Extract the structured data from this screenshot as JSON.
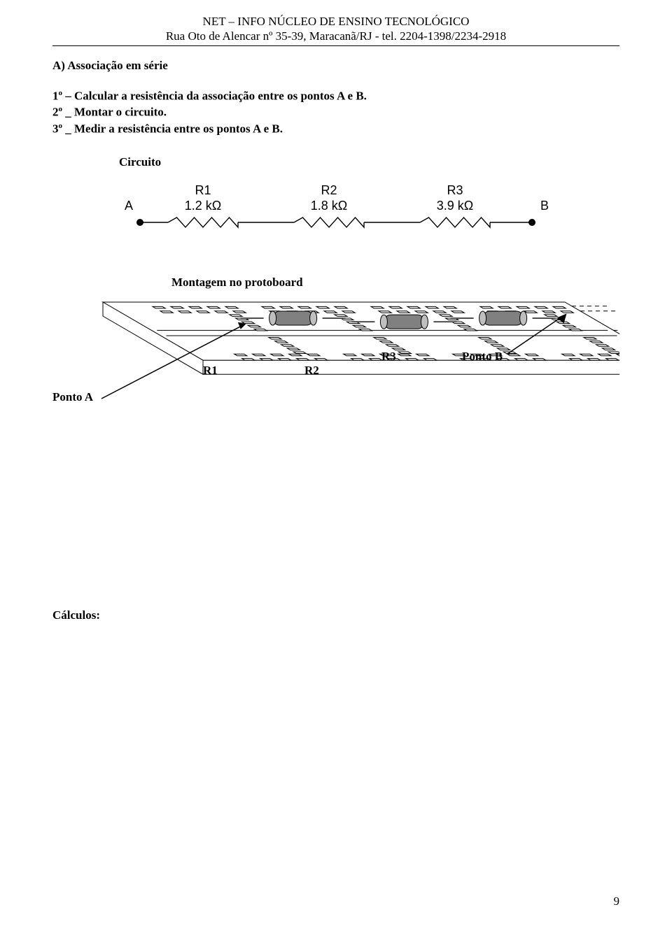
{
  "header": {
    "line1": "NET – INFO NÚCLEO DE ENSINO TECNOLÓGICO",
    "line2": "Rua Oto de Alencar nº 35-39, Maracanã/RJ - tel. 2204-1398/2234-2918"
  },
  "section": {
    "letter": "A)  Associação em série"
  },
  "steps": {
    "s1_pre": "1",
    "s1_sup": "o",
    "s1_post": " – Calcular a resistência da associação entre os pontos A e B.",
    "s2_pre": "2",
    "s2_sup": "o",
    "s2_post": " _ Montar o circuito.",
    "s3_pre": "3",
    "s3_sup": "o",
    "s3_post": " _ Medir a resistência entre os pontos A e B."
  },
  "headings": {
    "circuito": "Circuito",
    "montagem": "Montagem no protoboard",
    "calculos": "Cálculos:"
  },
  "circuit": {
    "nodeA": "A",
    "nodeB": "B",
    "resistors": [
      {
        "name": "R1",
        "value": "1.2 kΩ"
      },
      {
        "name": "R2",
        "value": "1.8 kΩ"
      },
      {
        "name": "R3",
        "value": "3.9 kΩ"
      }
    ],
    "style": {
      "stroke": "#000000",
      "stroke_width": 1.4,
      "font_size_label": 18,
      "font_size_value": 18,
      "text_color": "#000000"
    }
  },
  "protoboard": {
    "labels": {
      "pontoA": "Ponto A",
      "pontoB": "Ponto B",
      "r1": "R1",
      "r2": "R2",
      "r3": "R3"
    },
    "style": {
      "board_stroke": "#000000",
      "board_fill": "#ffffff",
      "hole_stroke": "#000000",
      "hole_fill": "#ffffff",
      "rail_dash": "6 5",
      "resistor_body_fill": "#808080",
      "resistor_band_fill": "#bfbfbf",
      "resistor_lead": "#4d4d4d",
      "arrow_color": "#000000"
    }
  },
  "page_number": "9"
}
